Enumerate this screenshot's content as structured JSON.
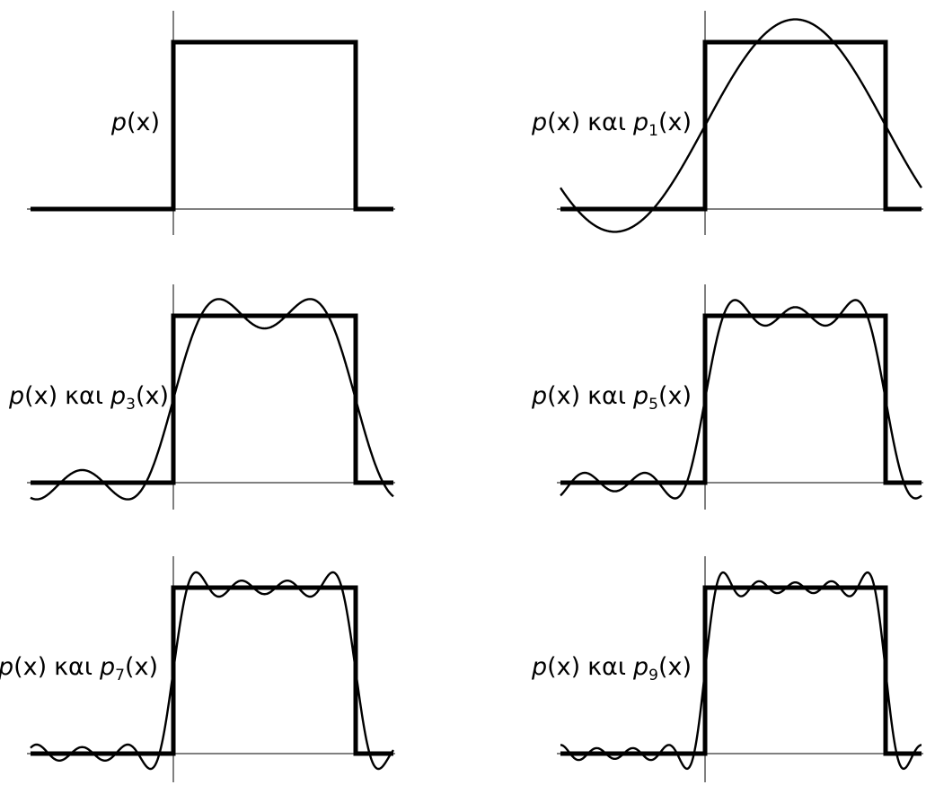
{
  "panels": [
    {
      "label": {
        "f": "p",
        "arg": "(x)",
        "conj": "",
        "g": "",
        "sub": "",
        "garg": ""
      },
      "harmonics": 0
    },
    {
      "label": {
        "f": "p",
        "arg": "(x)",
        "conj": "και",
        "g": "p",
        "sub": "1",
        "garg": "(x)"
      },
      "harmonics": 1
    },
    {
      "label": {
        "f": "p",
        "arg": "(x)",
        "conj": "και",
        "g": "p",
        "sub": "3",
        "garg": "(x)"
      },
      "harmonics": 3
    },
    {
      "label": {
        "f": "p",
        "arg": "(x)",
        "conj": "και",
        "g": "p",
        "sub": "5",
        "garg": "(x)"
      },
      "harmonics": 5
    },
    {
      "label": {
        "f": "p",
        "arg": "(x)",
        "conj": "και",
        "g": "p",
        "sub": "7",
        "garg": "(x)"
      },
      "harmonics": 7
    },
    {
      "label": {
        "f": "p",
        "arg": "(x)",
        "conj": "και",
        "g": "p",
        "sub": "9",
        "garg": "(x)"
      },
      "harmonics": 9
    }
  ]
}
